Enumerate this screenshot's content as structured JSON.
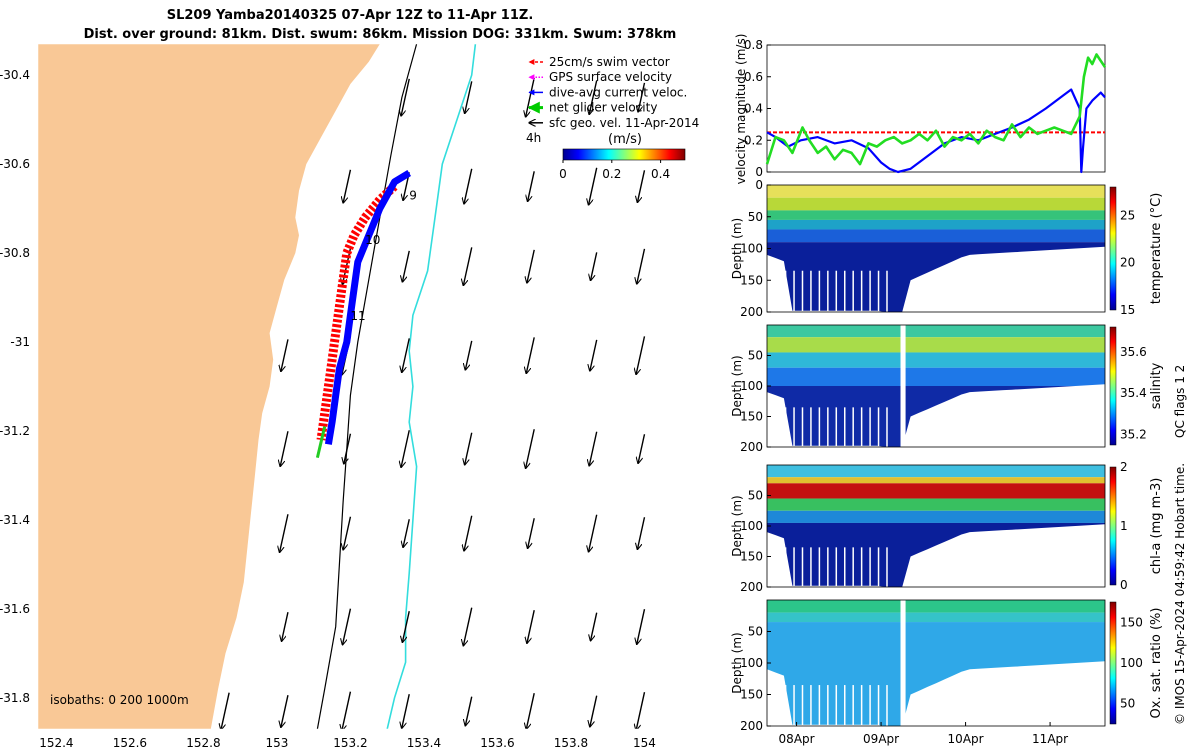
{
  "chart_data": [
    {
      "type": "map",
      "title_lines": [
        "SL209 Yamba20140325 07-Apr 12Z to 11-Apr 11Z.",
        "Dist. over ground: 81km. Dist. swum: 86km. Mission DOG: 331km. Swum: 378km"
      ],
      "xlim": [
        152.35,
        154.2
      ],
      "ylim": [
        -31.87,
        -30.33
      ],
      "x_ticks": [
        {
          "value": 152.4,
          "label": "152.4"
        },
        {
          "value": 152.6,
          "label": "152.6"
        },
        {
          "value": 152.8,
          "label": "152.8"
        },
        {
          "value": 153.0,
          "label": "153"
        },
        {
          "value": 153.2,
          "label": "153.2"
        },
        {
          "value": 153.4,
          "label": "153.4"
        },
        {
          "value": 153.6,
          "label": "153.6"
        },
        {
          "value": 153.8,
          "label": "153.8"
        },
        {
          "value": 154.0,
          "label": "154"
        }
      ],
      "y_ticks": [
        {
          "value": -30.4,
          "label": "-30.4"
        },
        {
          "value": -30.6,
          "label": "-30.6"
        },
        {
          "value": -30.8,
          "label": "-30.8"
        },
        {
          "value": -31.0,
          "label": "-31"
        },
        {
          "value": -31.2,
          "label": "-31.2"
        },
        {
          "value": -31.4,
          "label": "-31.4"
        },
        {
          "value": -31.6,
          "label": "-31.6"
        },
        {
          "value": -31.8,
          "label": "-31.8"
        }
      ],
      "land_color": "#f9c896",
      "coastline": [
        [
          152.35,
          -30.33
        ],
        [
          153.28,
          -30.33
        ],
        [
          153.25,
          -30.37
        ],
        [
          153.2,
          -30.42
        ],
        [
          153.16,
          -30.48
        ],
        [
          153.12,
          -30.54
        ],
        [
          153.08,
          -30.6
        ],
        [
          153.06,
          -30.66
        ],
        [
          153.05,
          -30.72
        ],
        [
          153.06,
          -30.76
        ],
        [
          153.05,
          -30.8
        ],
        [
          153.02,
          -30.86
        ],
        [
          153.0,
          -30.92
        ],
        [
          152.98,
          -30.98
        ],
        [
          152.99,
          -31.04
        ],
        [
          152.98,
          -31.1
        ],
        [
          152.96,
          -31.16
        ],
        [
          152.95,
          -31.22
        ],
        [
          152.94,
          -31.3
        ],
        [
          152.93,
          -31.38
        ],
        [
          152.92,
          -31.46
        ],
        [
          152.91,
          -31.54
        ],
        [
          152.89,
          -31.62
        ],
        [
          152.86,
          -31.7
        ],
        [
          152.84,
          -31.78
        ],
        [
          152.82,
          -31.87
        ],
        [
          152.35,
          -31.87
        ]
      ],
      "isobaths_label": "isobaths: 0   200  1000m",
      "isobath_200m": [
        [
          153.38,
          -30.33
        ],
        [
          153.34,
          -30.45
        ],
        [
          153.31,
          -30.58
        ],
        [
          153.28,
          -30.72
        ],
        [
          153.25,
          -30.86
        ],
        [
          153.22,
          -31.0
        ],
        [
          153.2,
          -31.12
        ],
        [
          153.19,
          -31.24
        ],
        [
          153.18,
          -31.36
        ],
        [
          153.17,
          -31.5
        ],
        [
          153.16,
          -31.64
        ],
        [
          153.13,
          -31.78
        ],
        [
          153.11,
          -31.87
        ]
      ],
      "isobath_1000m": [
        [
          153.54,
          -30.33
        ],
        [
          153.53,
          -30.4
        ],
        [
          153.49,
          -30.5
        ],
        [
          153.45,
          -30.6
        ],
        [
          153.43,
          -30.72
        ],
        [
          153.41,
          -30.84
        ],
        [
          153.37,
          -30.94
        ],
        [
          153.36,
          -31.02
        ],
        [
          153.37,
          -31.1
        ],
        [
          153.36,
          -31.18
        ],
        [
          153.38,
          -31.28
        ],
        [
          153.37,
          -31.4
        ],
        [
          153.36,
          -31.52
        ],
        [
          153.35,
          -31.62
        ],
        [
          153.35,
          -31.72
        ],
        [
          153.32,
          -31.8
        ],
        [
          153.3,
          -31.87
        ]
      ],
      "glider_track_red": [
        [
          153.32,
          -30.65
        ],
        [
          153.28,
          -30.68
        ],
        [
          153.24,
          -30.72
        ],
        [
          153.21,
          -30.76
        ],
        [
          153.19,
          -30.8
        ],
        [
          153.18,
          -30.86
        ],
        [
          153.17,
          -30.92
        ],
        [
          153.16,
          -30.98
        ],
        [
          153.15,
          -31.04
        ],
        [
          153.14,
          -31.1
        ],
        [
          153.13,
          -31.16
        ],
        [
          153.12,
          -31.22
        ]
      ],
      "glider_track_blue": [
        [
          153.36,
          -30.62
        ],
        [
          153.32,
          -30.64
        ],
        [
          153.28,
          -30.7
        ],
        [
          153.25,
          -30.76
        ],
        [
          153.22,
          -30.82
        ],
        [
          153.21,
          -30.88
        ],
        [
          153.2,
          -30.94
        ],
        [
          153.19,
          -31.0
        ],
        [
          153.17,
          -31.06
        ],
        [
          153.16,
          -31.12
        ],
        [
          153.15,
          -31.18
        ],
        [
          153.14,
          -31.23
        ]
      ],
      "net_velocity_segment": [
        [
          153.13,
          -31.19
        ],
        [
          153.11,
          -31.26
        ]
      ],
      "day_labels": [
        {
          "label": "9",
          "lon": 153.36,
          "lat": -30.68
        },
        {
          "label": "10",
          "lon": 153.24,
          "lat": -30.78
        },
        {
          "label": "11",
          "lon": 153.2,
          "lat": -30.95
        }
      ],
      "arrow_grid": {
        "lons": [
          152.87,
          153.03,
          153.2,
          153.36,
          153.53,
          153.7,
          153.87,
          154.0
        ],
        "lats": [
          -30.45,
          -30.65,
          -30.83,
          -31.03,
          -31.24,
          -31.43,
          -31.64,
          -31.83
        ]
      },
      "legend": [
        {
          "label": "25cm/s swim vector",
          "color": "#ff0000",
          "style": "dashed"
        },
        {
          "label": "GPS surface velocity",
          "color": "#ff00ff",
          "style": "dotted"
        },
        {
          "label": "dive-avg current veloc.",
          "color": "#0000ff",
          "style": "solid"
        },
        {
          "label": "net glider velocity",
          "color": "#00cc00",
          "style": "thick"
        },
        {
          "label": "sfc geo. vel. 11-Apr-2014",
          "color": "#000000",
          "style": "solid"
        }
      ],
      "scale_label": "4h",
      "colorbar": {
        "title": "(m/s)",
        "range": [
          0,
          0.5
        ],
        "ticks": [
          {
            "value": 0,
            "label": "0"
          },
          {
            "value": 0.2,
            "label": "0.2"
          },
          {
            "value": 0.4,
            "label": "0.4"
          }
        ]
      }
    },
    {
      "type": "line",
      "ylabel": "velocity magnitude (m/s)",
      "ylim": [
        0,
        0.8
      ],
      "y_ticks": [
        {
          "value": 0,
          "label": "0"
        },
        {
          "value": 0.2,
          "label": "0.2"
        },
        {
          "value": 0.4,
          "label": "0.4"
        },
        {
          "value": 0.6,
          "label": "0.6"
        },
        {
          "value": 0.8,
          "label": "0.8"
        }
      ],
      "xlim": [
        0,
        4
      ],
      "reference_line": {
        "value": 0.25,
        "color": "#ff0000"
      },
      "series": [
        {
          "color": "#0000ff",
          "x": [
            0,
            0.1,
            0.25,
            0.4,
            0.6,
            0.8,
            1.0,
            1.2,
            1.35,
            1.45,
            1.55,
            1.7,
            1.9,
            2.1,
            2.3,
            2.5,
            2.7,
            2.9,
            3.1,
            3.3,
            3.5,
            3.6,
            3.7,
            3.72,
            3.74,
            3.78,
            3.85,
            3.95,
            4.0
          ],
          "y": [
            0.25,
            0.22,
            0.16,
            0.2,
            0.22,
            0.18,
            0.2,
            0.15,
            0.06,
            0.02,
            0.0,
            0.02,
            0.1,
            0.18,
            0.22,
            0.2,
            0.24,
            0.28,
            0.33,
            0.4,
            0.48,
            0.52,
            0.4,
            0.0,
            0.15,
            0.4,
            0.45,
            0.5,
            0.47
          ]
        },
        {
          "color": "#22dd22",
          "x": [
            0,
            0.1,
            0.2,
            0.3,
            0.42,
            0.5,
            0.6,
            0.7,
            0.8,
            0.9,
            1.0,
            1.1,
            1.2,
            1.3,
            1.4,
            1.5,
            1.6,
            1.7,
            1.8,
            1.9,
            2.0,
            2.1,
            2.2,
            2.3,
            2.4,
            2.5,
            2.6,
            2.7,
            2.8,
            2.9,
            3.0,
            3.1,
            3.2,
            3.3,
            3.4,
            3.5,
            3.6,
            3.7,
            3.75,
            3.8,
            3.85,
            3.9,
            4.0
          ],
          "y": [
            0.05,
            0.22,
            0.2,
            0.12,
            0.28,
            0.2,
            0.12,
            0.16,
            0.08,
            0.14,
            0.12,
            0.05,
            0.18,
            0.16,
            0.2,
            0.22,
            0.18,
            0.2,
            0.24,
            0.2,
            0.26,
            0.16,
            0.22,
            0.2,
            0.24,
            0.18,
            0.26,
            0.22,
            0.2,
            0.3,
            0.22,
            0.28,
            0.24,
            0.26,
            0.28,
            0.26,
            0.24,
            0.35,
            0.6,
            0.72,
            0.68,
            0.74,
            0.66
          ]
        }
      ]
    },
    {
      "type": "heatmap",
      "ylabel": "Depth (m)",
      "colorbar_label": "temperature (°C)",
      "clim": [
        15,
        28
      ],
      "y_ticks": [
        {
          "value": 0,
          "label": "0"
        },
        {
          "value": 50,
          "label": "50"
        },
        {
          "value": 100,
          "label": "100"
        },
        {
          "value": 150,
          "label": "150"
        },
        {
          "value": 200,
          "label": "200"
        }
      ],
      "colorbar_ticks": [
        {
          "value": 15,
          "label": "15"
        },
        {
          "value": 20,
          "label": "20"
        },
        {
          "value": 25,
          "label": "25"
        }
      ],
      "layers": [
        {
          "from": 0,
          "to": 20,
          "color": "#e6e05a"
        },
        {
          "from": 20,
          "to": 40,
          "color": "#b8d838"
        },
        {
          "from": 40,
          "to": 55,
          "color": "#35c37a"
        },
        {
          "from": 55,
          "to": 70,
          "color": "#1ea2c8"
        },
        {
          "from": 70,
          "to": 90,
          "color": "#1a5fd8"
        },
        {
          "from": 90,
          "to": 200,
          "color": "#0a1f9a"
        }
      ]
    },
    {
      "type": "heatmap",
      "ylabel": "Depth (m)",
      "colorbar_label": "salinity",
      "clim": [
        35.15,
        35.72
      ],
      "y_ticks": [
        {
          "value": 50,
          "label": "50"
        },
        {
          "value": 100,
          "label": "100"
        },
        {
          "value": 150,
          "label": "150"
        },
        {
          "value": 200,
          "label": "200"
        }
      ],
      "colorbar_ticks": [
        {
          "value": 35.2,
          "label": "35.2"
        },
        {
          "value": 35.4,
          "label": "35.4"
        },
        {
          "value": 35.6,
          "label": "35.6"
        }
      ],
      "qc_label": "QC flags 1  2",
      "layers": [
        {
          "from": 0,
          "to": 20,
          "color": "#3dc8a0"
        },
        {
          "from": 20,
          "to": 45,
          "color": "#a8dc4a"
        },
        {
          "from": 45,
          "to": 70,
          "color": "#2fb8d8"
        },
        {
          "from": 70,
          "to": 100,
          "color": "#1e78e8"
        },
        {
          "from": 100,
          "to": 200,
          "color": "#0f2aa6"
        }
      ]
    },
    {
      "type": "heatmap",
      "ylabel": "Depth (m)",
      "colorbar_label": "chl-a (mg m-3)",
      "clim": [
        0,
        2
      ],
      "y_ticks": [
        {
          "value": 50,
          "label": "50"
        },
        {
          "value": 100,
          "label": "100"
        },
        {
          "value": 150,
          "label": "150"
        },
        {
          "value": 200,
          "label": "200"
        }
      ],
      "colorbar_ticks": [
        {
          "value": 0,
          "label": "0"
        },
        {
          "value": 1,
          "label": "1"
        },
        {
          "value": 2,
          "label": "2"
        }
      ],
      "timestamp_label": "© IMOS 15-Apr-2024 04:59:42 Hobart time.",
      "layers": [
        {
          "from": 0,
          "to": 20,
          "color": "#3fbfe0"
        },
        {
          "from": 20,
          "to": 30,
          "color": "#e0c030"
        },
        {
          "from": 30,
          "to": 55,
          "color": "#c41010"
        },
        {
          "from": 55,
          "to": 75,
          "color": "#38c060"
        },
        {
          "from": 75,
          "to": 95,
          "color": "#1e88d8"
        },
        {
          "from": 95,
          "to": 200,
          "color": "#0a1f9a"
        }
      ]
    },
    {
      "type": "heatmap",
      "ylabel": "Depth (m)",
      "colorbar_label": "Ox. sat. ratio (%)",
      "clim": [
        25,
        175
      ],
      "y_ticks": [
        {
          "value": 50,
          "label": "50"
        },
        {
          "value": 100,
          "label": "100"
        },
        {
          "value": 150,
          "label": "150"
        },
        {
          "value": 200,
          "label": "200"
        }
      ],
      "colorbar_ticks": [
        {
          "value": 50,
          "label": "50"
        },
        {
          "value": 100,
          "label": "100"
        },
        {
          "value": 150,
          "label": "150"
        }
      ],
      "x_ticks": [
        {
          "value": 0.35,
          "label": "08Apr"
        },
        {
          "value": 1.35,
          "label": "09Apr"
        },
        {
          "value": 2.35,
          "label": "10Apr"
        },
        {
          "value": 3.35,
          "label": "11Apr"
        }
      ],
      "layers": [
        {
          "from": 0,
          "to": 20,
          "color": "#2cc58a"
        },
        {
          "from": 20,
          "to": 35,
          "color": "#35c3c8"
        },
        {
          "from": 35,
          "to": 200,
          "color": "#2fa8e8"
        }
      ]
    }
  ]
}
